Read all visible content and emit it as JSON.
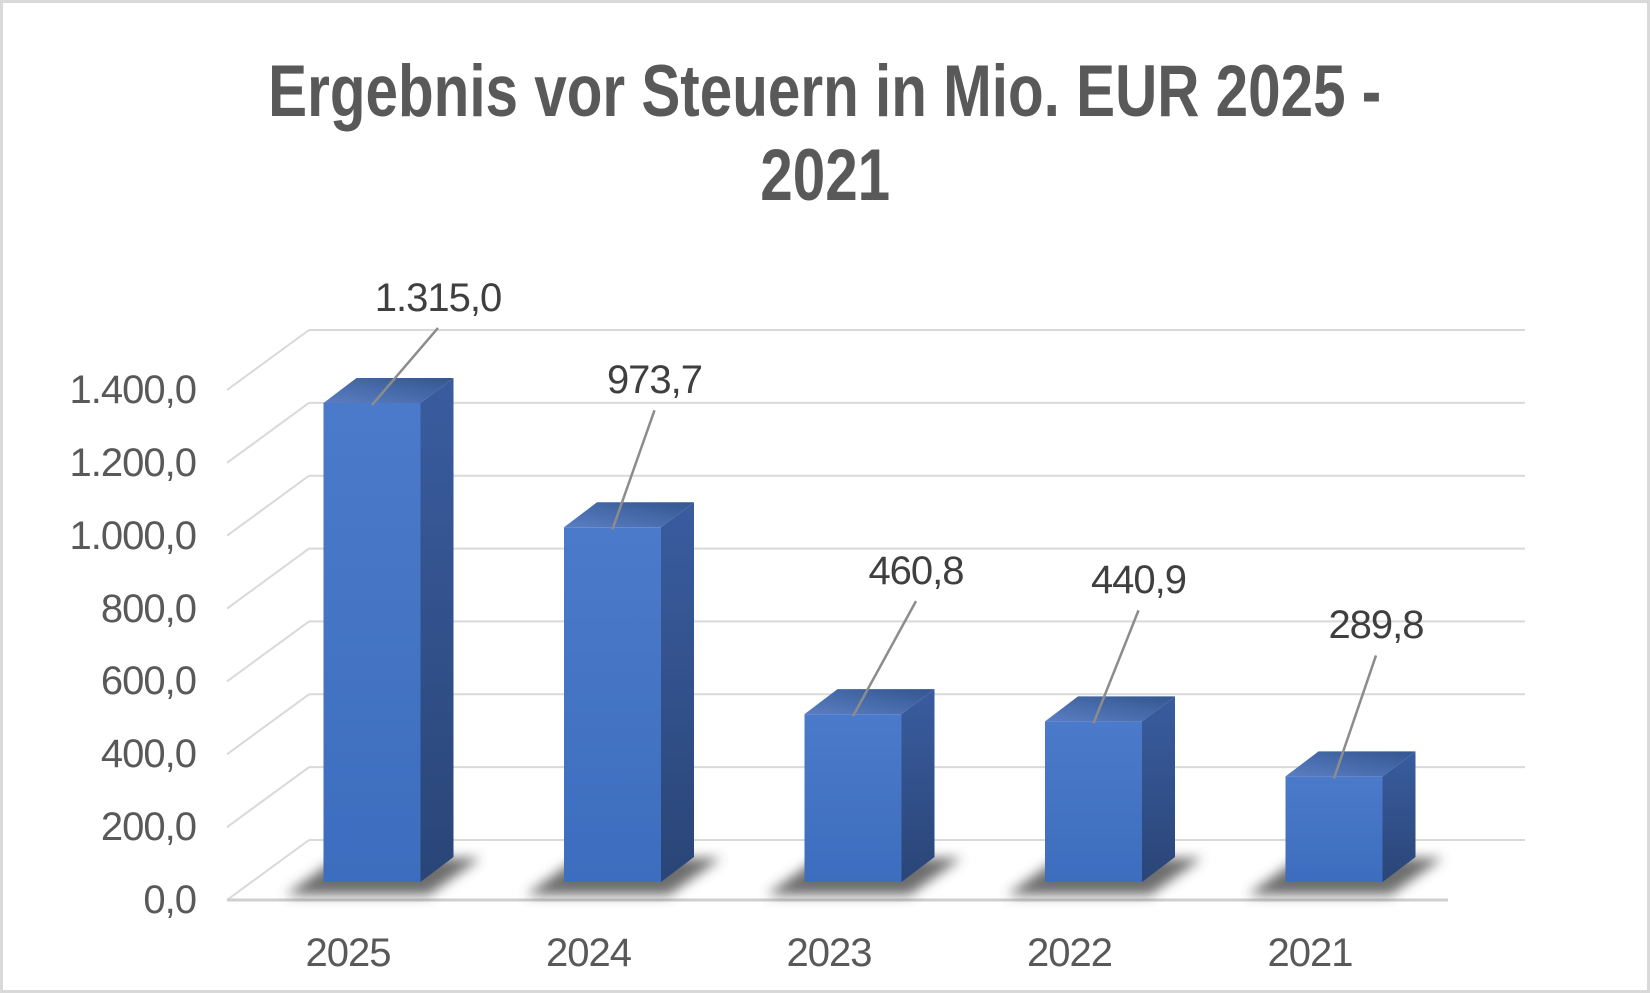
{
  "chart_data": {
    "type": "bar",
    "style": "3d-column",
    "title": "Ergebnis vor Steuern in Mio. EUR  2025 - 2021",
    "title_lines": [
      "Ergebnis vor Steuern in Mio. EUR  2025 -",
      "2021"
    ],
    "categories": [
      "2025",
      "2024",
      "2023",
      "2022",
      "2021"
    ],
    "values": [
      1315.0,
      973.7,
      460.8,
      440.9,
      289.8
    ],
    "data_labels": [
      "1.315,0",
      "973,7",
      "460,8",
      "440,9",
      "289,8"
    ],
    "xlabel": "",
    "ylabel": "",
    "ylim": [
      0,
      1400
    ],
    "y_tick_step": 200,
    "y_tick_labels": [
      "0,0",
      "200,0",
      "400,0",
      "600,0",
      "800,0",
      "1.000,0",
      "1.200,0",
      "1.400,0"
    ],
    "grid": true,
    "legend": "none",
    "colors": {
      "bar_front": "#4472C4",
      "bar_front_light": "#4C7ACA",
      "bar_front_dark": "#3D6DBE",
      "bar_top_light": "#5B7EC3",
      "bar_top_dark": "#335690",
      "bar_side_light": "#3A5C9F",
      "bar_side_dark": "#2A4577",
      "bar_shadow": "#4A4A4A",
      "gridline": "#D9D9D9",
      "baseline": "#CFCFCF",
      "leader_line": "#8C8C8C",
      "axis_text": "#595959",
      "data_label_text": "#3F3F3F",
      "title_text": "#595959",
      "background": "#FFFFFF",
      "border": "#D9D9D9"
    }
  }
}
